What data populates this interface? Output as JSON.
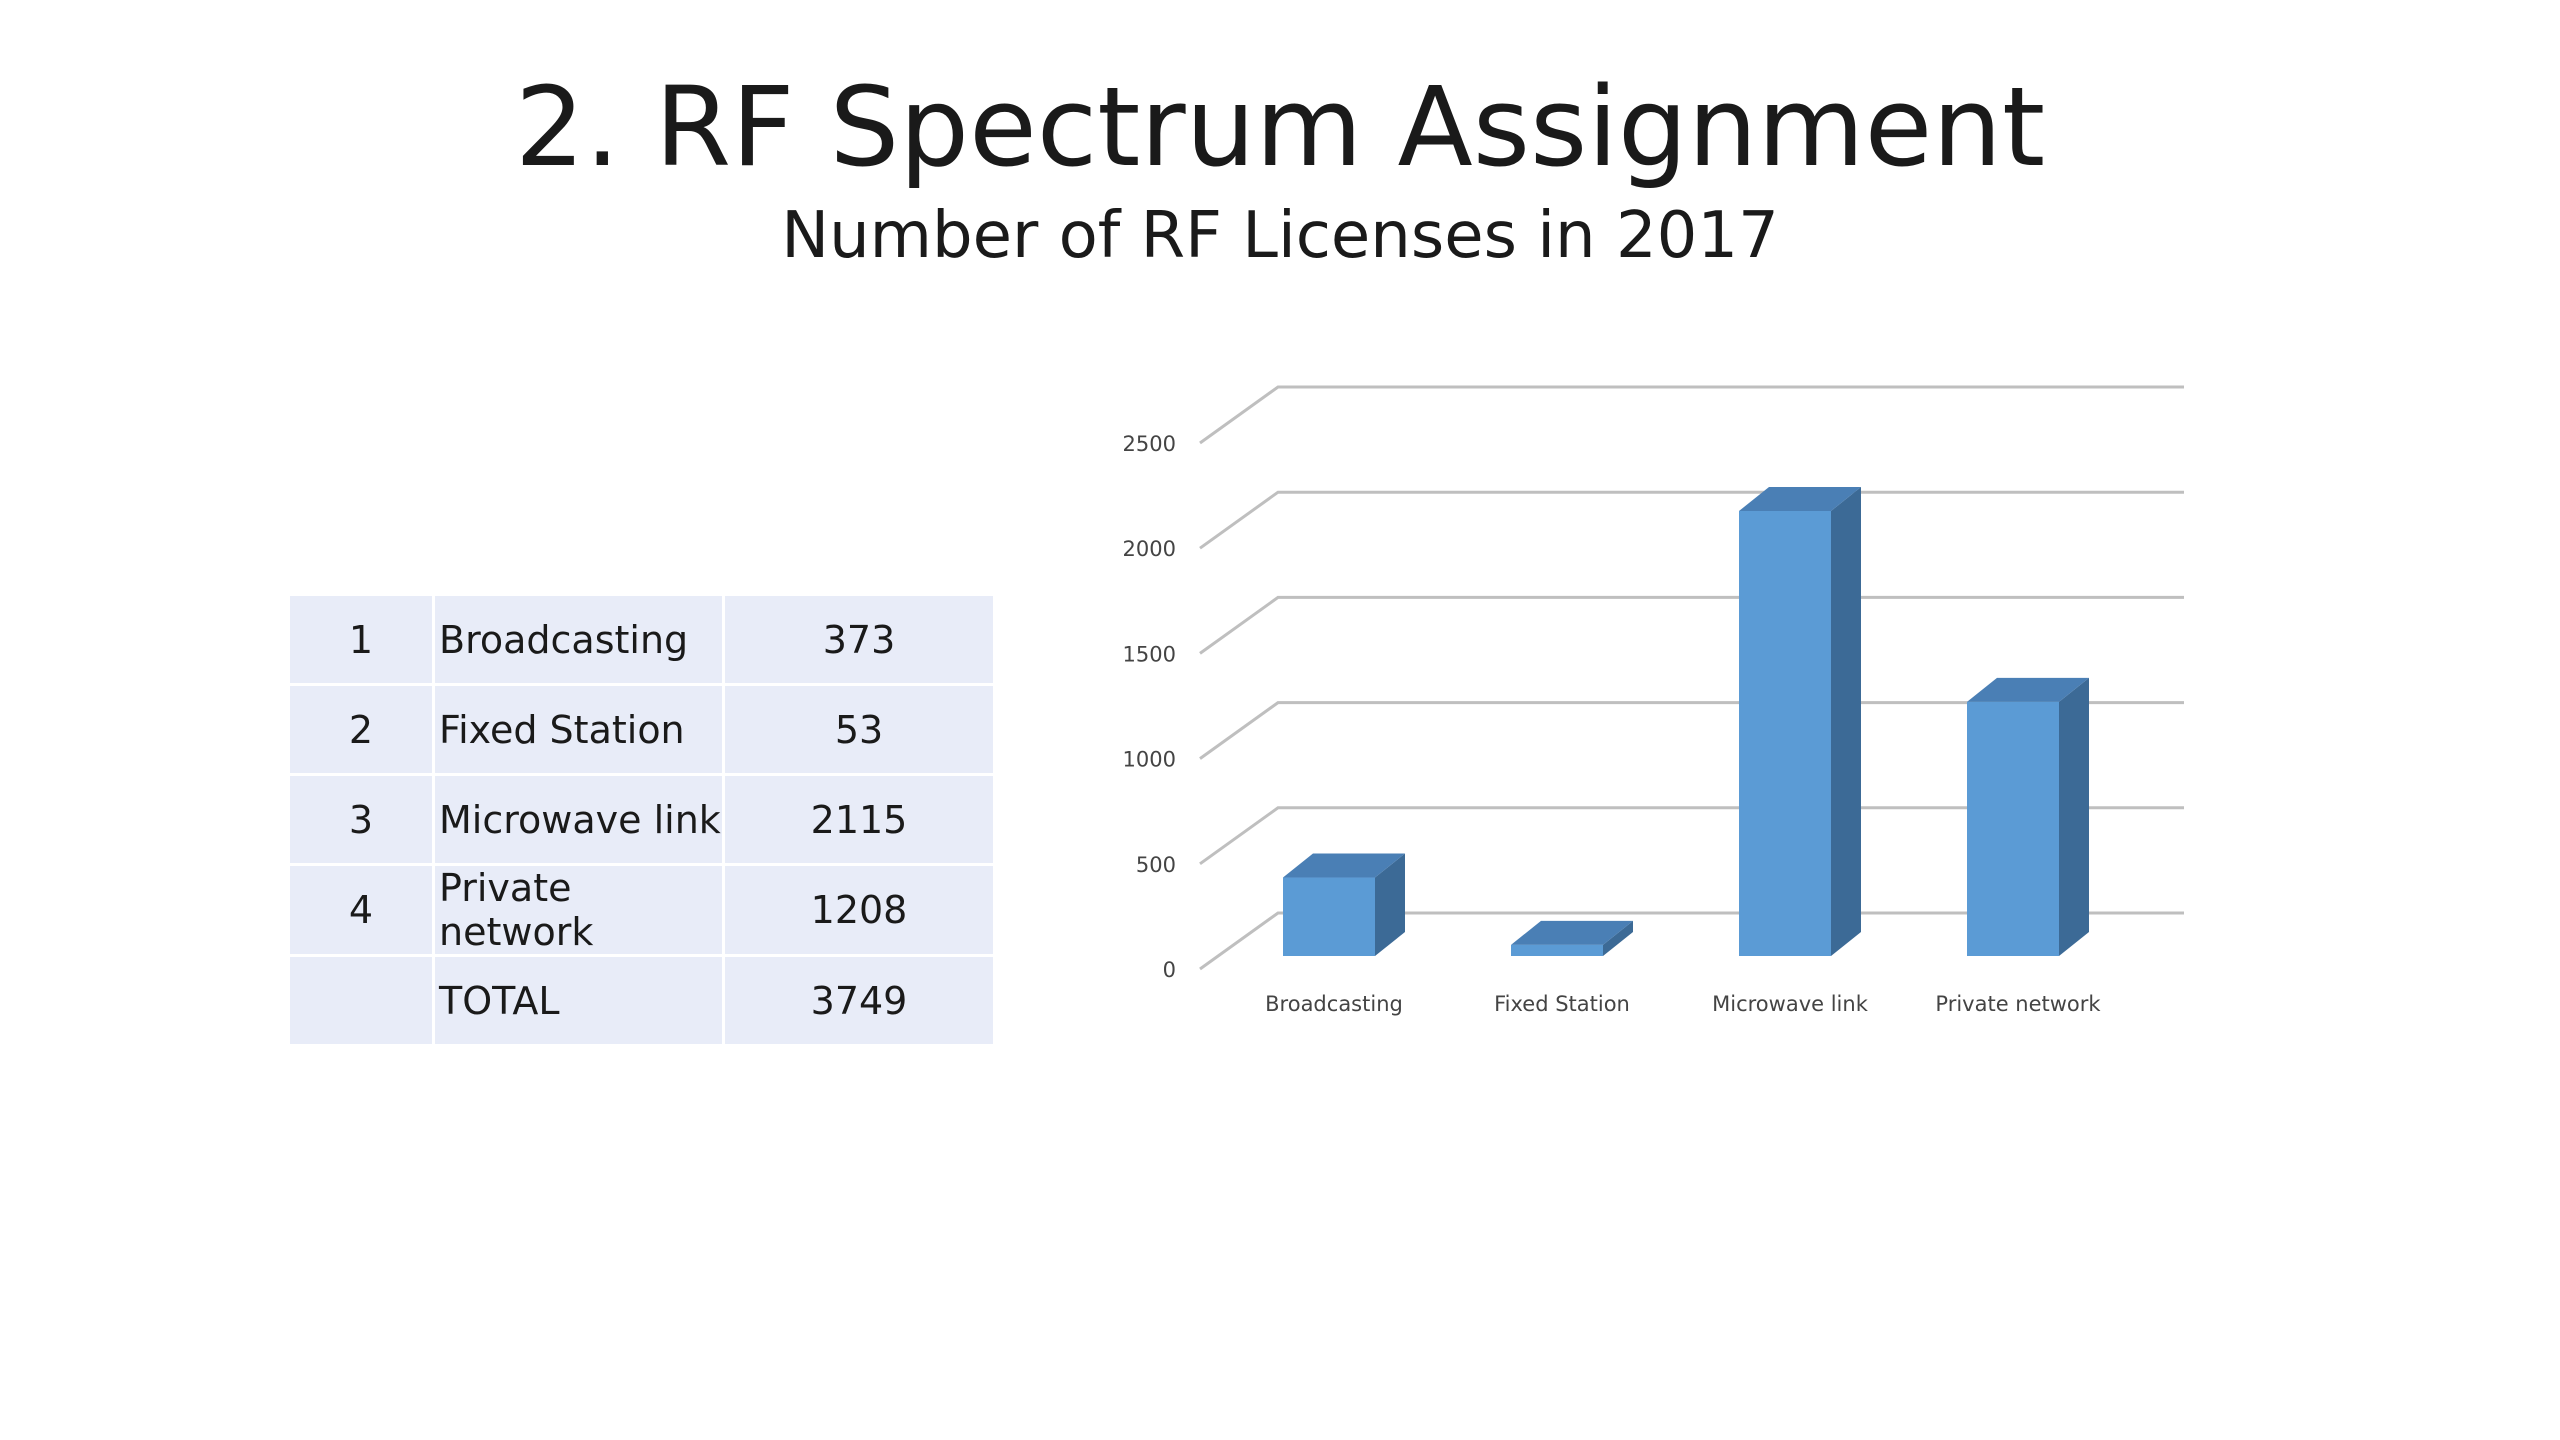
{
  "slide": {
    "title": "2. RF Spectrum Assignment",
    "subtitle": "Number of RF Licenses in 2017"
  },
  "table": {
    "rows": [
      {
        "no": "1",
        "name": "Broadcasting",
        "value": "373"
      },
      {
        "no": "2",
        "name": "Fixed Station",
        "value": "53"
      },
      {
        "no": "3",
        "name": "Microwave link",
        "value": "2115"
      },
      {
        "no": "4",
        "name": "Private network",
        "value": "1208"
      },
      {
        "no": "",
        "name": "TOTAL",
        "value": "3749"
      }
    ]
  },
  "chart_data": {
    "type": "bar",
    "categories": [
      "Broadcasting",
      "Fixed Station",
      "Microwave link",
      "Private network"
    ],
    "values": [
      373,
      53,
      2115,
      1208
    ],
    "ylim": [
      0,
      2500
    ],
    "yticks": [
      0,
      500,
      1000,
      1500,
      2000,
      2500
    ],
    "grid": true,
    "style": "3d-column",
    "colors": {
      "front": "#5b9bd5",
      "top": "#4a7fb5",
      "side": "#3c6a96",
      "grid": "#bfbfbf"
    }
  }
}
